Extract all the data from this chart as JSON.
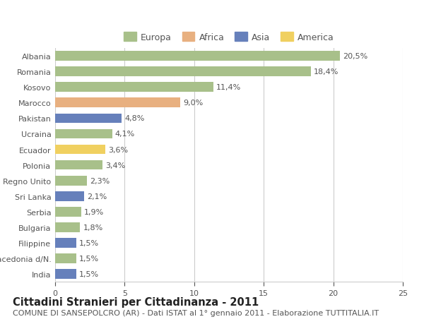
{
  "categories": [
    "Albania",
    "Romania",
    "Kosovo",
    "Marocco",
    "Pakistan",
    "Ucraina",
    "Ecuador",
    "Polonia",
    "Regno Unito",
    "Sri Lanka",
    "Serbia",
    "Bulgaria",
    "Filippine",
    "Macedonia d/N.",
    "India"
  ],
  "values": [
    20.5,
    18.4,
    11.4,
    9.0,
    4.8,
    4.1,
    3.6,
    3.4,
    2.3,
    2.1,
    1.9,
    1.8,
    1.5,
    1.5,
    1.5
  ],
  "labels": [
    "20,5%",
    "18,4%",
    "11,4%",
    "9,0%",
    "4,8%",
    "4,1%",
    "3,6%",
    "3,4%",
    "2,3%",
    "2,1%",
    "1,9%",
    "1,8%",
    "1,5%",
    "1,5%",
    "1,5%"
  ],
  "continent": [
    "Europa",
    "Europa",
    "Europa",
    "Africa",
    "Asia",
    "Europa",
    "America",
    "Europa",
    "Europa",
    "Asia",
    "Europa",
    "Europa",
    "Asia",
    "Europa",
    "Asia"
  ],
  "colors": {
    "Europa": "#a8c08a",
    "Africa": "#e8b080",
    "Asia": "#6680bb",
    "America": "#f0d060"
  },
  "legend_order": [
    "Europa",
    "Africa",
    "Asia",
    "America"
  ],
  "title": "Cittadini Stranieri per Cittadinanza - 2011",
  "subtitle": "COMUNE DI SANSEPOLCRO (AR) - Dati ISTAT al 1° gennaio 2011 - Elaborazione TUTTITALIA.IT",
  "xlim": [
    0,
    25
  ],
  "xticks": [
    0,
    5,
    10,
    15,
    20,
    25
  ],
  "bg_color": "#ffffff",
  "grid_color": "#cccccc",
  "bar_height": 0.62,
  "title_fontsize": 10.5,
  "subtitle_fontsize": 8.0,
  "label_fontsize": 8.0,
  "tick_fontsize": 8.0,
  "legend_fontsize": 9.0
}
